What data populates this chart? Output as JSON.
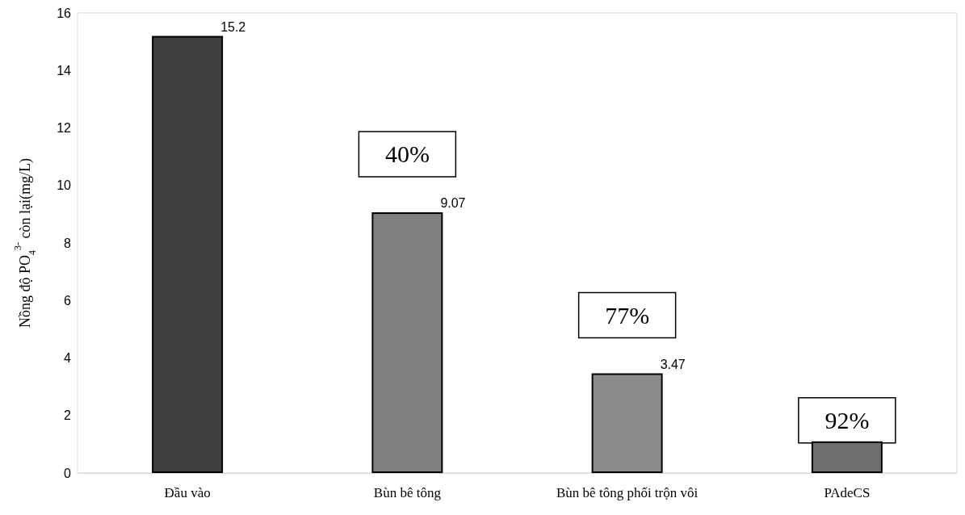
{
  "chart_data": {
    "type": "bar",
    "ylabel": "Nồng độ PO$_{4}$$^{3-}$ còn lại(mg/L)",
    "categories": [
      "Đầu vào",
      "Bùn bê tông",
      "Bùn bê tông phối trộn vôi",
      "PAdeCS"
    ],
    "values": [
      15.2,
      9.07,
      3.47,
      1.1
    ],
    "value_labels": [
      "15.2",
      "9.07",
      "3.47",
      null
    ],
    "colors": [
      "#404040",
      "#808080",
      "#8c8c8c",
      "#6e6e6e"
    ],
    "ylim": [
      0,
      16
    ],
    "yticks": [
      0,
      2,
      4,
      6,
      8,
      10,
      12,
      14,
      16
    ],
    "grid": false,
    "annotations": [
      "40%",
      "77%",
      "92%"
    ]
  }
}
